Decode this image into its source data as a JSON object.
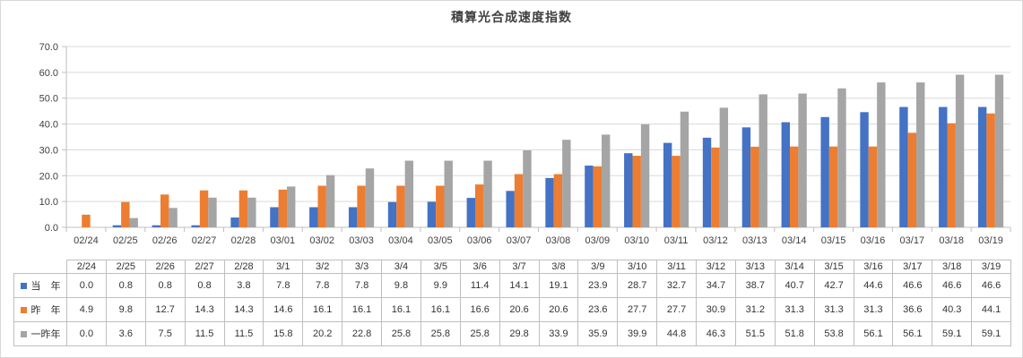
{
  "chart_data": {
    "type": "bar",
    "title": "積算光合成速度指数",
    "categories": [
      "02/24",
      "02/25",
      "02/26",
      "02/27",
      "02/28",
      "03/01",
      "03/02",
      "03/03",
      "03/04",
      "03/05",
      "03/06",
      "03/07",
      "03/08",
      "03/09",
      "03/10",
      "03/11",
      "03/12",
      "03/13",
      "03/14",
      "03/15",
      "03/16",
      "03/17",
      "03/18",
      "03/19"
    ],
    "table_categories": [
      "2/24",
      "2/25",
      "2/26",
      "2/27",
      "2/28",
      "3/1",
      "3/2",
      "3/3",
      "3/4",
      "3/5",
      "3/6",
      "3/7",
      "3/8",
      "3/9",
      "3/10",
      "3/11",
      "3/12",
      "3/13",
      "3/14",
      "3/15",
      "3/16",
      "3/17",
      "3/18",
      "3/19"
    ],
    "series": [
      {
        "name": "当　年",
        "color": "#4472C4",
        "values": [
          0.0,
          0.8,
          0.8,
          0.8,
          3.8,
          7.8,
          7.8,
          7.8,
          9.8,
          9.9,
          11.4,
          14.1,
          19.1,
          23.9,
          28.7,
          32.7,
          34.7,
          38.7,
          40.7,
          42.7,
          44.6,
          46.6,
          46.6,
          46.6
        ]
      },
      {
        "name": "昨　年",
        "color": "#ED7D31",
        "values": [
          4.9,
          9.8,
          12.7,
          14.3,
          14.3,
          14.6,
          16.1,
          16.1,
          16.1,
          16.1,
          16.6,
          20.6,
          20.6,
          23.6,
          27.7,
          27.7,
          30.9,
          31.2,
          31.3,
          31.3,
          31.3,
          36.6,
          40.3,
          44.1
        ]
      },
      {
        "name": "一昨年",
        "color": "#A5A5A5",
        "values": [
          0.0,
          3.6,
          7.5,
          11.5,
          11.5,
          15.8,
          20.2,
          22.8,
          25.8,
          25.8,
          25.8,
          29.8,
          33.9,
          35.9,
          39.9,
          44.8,
          46.3,
          51.5,
          51.8,
          53.8,
          56.1,
          56.1,
          59.1,
          59.1
        ]
      }
    ],
    "ylim": [
      0,
      70
    ],
    "ytick_step": 10,
    "ytick_labels": [
      "0.0",
      "10.0",
      "20.0",
      "30.0",
      "40.0",
      "50.0",
      "60.0",
      "70.0"
    ],
    "value_decimals": 1,
    "grid": "horizontal",
    "legend_position": "data-table-left"
  },
  "colors": {
    "gridline": "#D9D9D9",
    "axis": "#BFBFBF",
    "table_border": "#BFBFBF",
    "label_text": "#404040"
  }
}
